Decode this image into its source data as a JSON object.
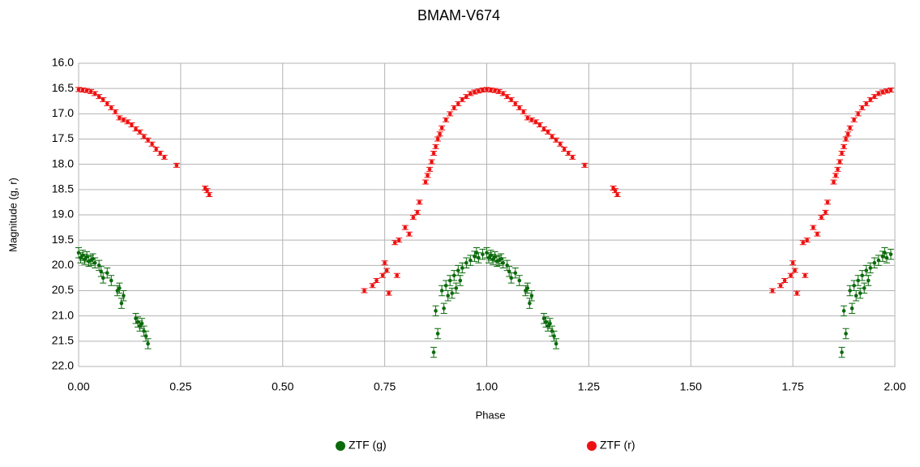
{
  "chart_data": {
    "type": "scatter",
    "title": "BMAM-V674",
    "x_label": "Phase",
    "y_label": "Magnitude (g, r)",
    "xlim": [
      0,
      2
    ],
    "ylim": [
      16,
      22
    ],
    "y_reversed": true,
    "grid": true,
    "legend": "bottom",
    "xticks": [
      {
        "value": 0,
        "label": "0.00"
      },
      0.25,
      {
        "value": 0.5,
        "label": "0.50"
      },
      0.75,
      {
        "value": 1,
        "label": "1.00"
      },
      1.25,
      {
        "value": 1.5,
        "label": "1.50"
      },
      1.75,
      {
        "value": 2,
        "label": "2.00"
      }
    ],
    "yticks": [
      {
        "value": 16,
        "label": "16.0"
      },
      16.5,
      {
        "value": 17,
        "label": "17.0"
      },
      17.5,
      {
        "value": 18,
        "label": "18.0"
      },
      18.5,
      {
        "value": 19,
        "label": "19.0"
      },
      19.5,
      {
        "value": 20,
        "label": "20.0"
      },
      20.5,
      {
        "value": 21,
        "label": "21.0"
      },
      21.5,
      {
        "value": 22,
        "label": "22.0"
      }
    ],
    "series": [
      {
        "name": "ZTF (g)",
        "color": "#0b6a0b",
        "error": 0.1,
        "x": [
          0,
          0.005,
          0.01,
          0.015,
          0.02,
          0.025,
          0.03,
          0.035,
          0.04,
          0.05,
          0.055,
          0.06,
          0.07,
          0.08,
          0.095,
          0.1,
          0.105,
          0.11,
          0.14,
          0.145,
          0.15,
          0.155,
          0.16,
          0.165,
          0.17,
          0.87,
          0.875,
          0.88,
          0.89,
          0.895,
          0.9,
          0.905,
          0.91,
          0.915,
          0.92,
          0.925,
          0.93,
          0.935,
          0.94,
          0.95,
          0.96,
          0.97,
          0.975,
          0.98,
          0.99,
          1,
          1.005,
          1.01,
          1.015,
          1.02,
          1.025,
          1.03,
          1.035,
          1.04,
          1.05,
          1.055,
          1.06,
          1.07,
          1.08,
          1.095,
          1.1,
          1.105,
          1.11,
          1.14,
          1.145,
          1.15,
          1.155,
          1.16,
          1.165,
          1.17,
          1.87,
          1.875,
          1.88,
          1.89,
          1.895,
          1.9,
          1.905,
          1.91,
          1.915,
          1.92,
          1.925,
          1.93,
          1.935,
          1.94,
          1.95,
          1.96,
          1.97,
          1.975,
          1.98,
          1.99
        ],
        "values": [
          19.75,
          19.85,
          19.8,
          19.88,
          19.83,
          19.92,
          19.9,
          19.87,
          19.95,
          20.0,
          20.12,
          20.25,
          20.15,
          20.3,
          20.5,
          20.45,
          20.75,
          20.6,
          21.05,
          21.12,
          21.2,
          21.15,
          21.3,
          21.4,
          21.55,
          21.72,
          20.9,
          21.35,
          20.5,
          20.85,
          20.4,
          20.6,
          20.3,
          20.55,
          20.2,
          20.45,
          20.1,
          20.3,
          20.05,
          19.95,
          19.9,
          19.82,
          19.75,
          19.85,
          19.78,
          19.75,
          19.85,
          19.8,
          19.88,
          19.83,
          19.92,
          19.9,
          19.87,
          19.95,
          20.0,
          20.12,
          20.25,
          20.15,
          20.3,
          20.5,
          20.45,
          20.75,
          20.6,
          21.05,
          21.12,
          21.2,
          21.15,
          21.3,
          21.4,
          21.55,
          21.72,
          20.9,
          21.35,
          20.5,
          20.85,
          20.4,
          20.6,
          20.3,
          20.55,
          20.2,
          20.45,
          20.1,
          20.3,
          20.05,
          19.95,
          19.9,
          19.82,
          19.75,
          19.85,
          19.78
        ]
      },
      {
        "name": "ZTF (r)",
        "color": "#ee1111",
        "error": 0.04,
        "x": [
          0,
          0.01,
          0.02,
          0.03,
          0.04,
          0.05,
          0.06,
          0.07,
          0.08,
          0.09,
          0.1,
          0.11,
          0.12,
          0.13,
          0.14,
          0.15,
          0.16,
          0.17,
          0.18,
          0.19,
          0.2,
          0.21,
          0.24,
          0.31,
          0.315,
          0.32,
          0.7,
          0.72,
          0.73,
          0.745,
          0.75,
          0.755,
          0.76,
          0.775,
          0.78,
          0.785,
          0.8,
          0.81,
          0.82,
          0.83,
          0.835,
          0.85,
          0.855,
          0.86,
          0.865,
          0.87,
          0.875,
          0.88,
          0.885,
          0.89,
          0.9,
          0.91,
          0.92,
          0.93,
          0.94,
          0.95,
          0.96,
          0.97,
          0.98,
          0.99,
          1,
          1.01,
          1.02,
          1.03,
          1.04,
          1.05,
          1.06,
          1.07,
          1.08,
          1.09,
          1.1,
          1.11,
          1.12,
          1.13,
          1.14,
          1.15,
          1.16,
          1.17,
          1.18,
          1.19,
          1.2,
          1.21,
          1.24,
          1.31,
          1.315,
          1.32,
          1.7,
          1.72,
          1.73,
          1.745,
          1.75,
          1.755,
          1.76,
          1.775,
          1.78,
          1.785,
          1.8,
          1.81,
          1.82,
          1.83,
          1.835,
          1.85,
          1.855,
          1.86,
          1.865,
          1.87,
          1.875,
          1.88,
          1.885,
          1.89,
          1.9,
          1.91,
          1.92,
          1.93,
          1.94,
          1.95,
          1.96,
          1.97,
          1.98,
          1.99
        ],
        "values": [
          16.52,
          16.53,
          16.54,
          16.56,
          16.6,
          16.66,
          16.72,
          16.8,
          16.88,
          16.96,
          17.08,
          17.12,
          17.16,
          17.22,
          17.3,
          17.36,
          17.45,
          17.52,
          17.6,
          17.7,
          17.78,
          17.86,
          18.02,
          18.47,
          18.52,
          18.6,
          20.5,
          20.4,
          20.3,
          20.2,
          19.95,
          20.1,
          20.55,
          19.55,
          20.2,
          19.5,
          19.25,
          19.38,
          19.05,
          18.95,
          18.75,
          18.35,
          18.22,
          18.1,
          17.95,
          17.78,
          17.65,
          17.5,
          17.4,
          17.28,
          17.12,
          17.0,
          16.88,
          16.8,
          16.72,
          16.66,
          16.6,
          16.57,
          16.55,
          16.53,
          16.52,
          16.53,
          16.54,
          16.56,
          16.6,
          16.66,
          16.72,
          16.8,
          16.88,
          16.96,
          17.08,
          17.12,
          17.16,
          17.22,
          17.3,
          17.36,
          17.45,
          17.52,
          17.6,
          17.7,
          17.78,
          17.86,
          18.02,
          18.47,
          18.52,
          18.6,
          20.5,
          20.4,
          20.3,
          20.2,
          19.95,
          20.1,
          20.55,
          19.55,
          20.2,
          19.5,
          19.25,
          19.38,
          19.05,
          18.95,
          18.75,
          18.35,
          18.22,
          18.1,
          17.95,
          17.78,
          17.65,
          17.5,
          17.4,
          17.28,
          17.12,
          17.0,
          16.88,
          16.8,
          16.72,
          16.66,
          16.6,
          16.57,
          16.55,
          16.53
        ]
      }
    ]
  }
}
